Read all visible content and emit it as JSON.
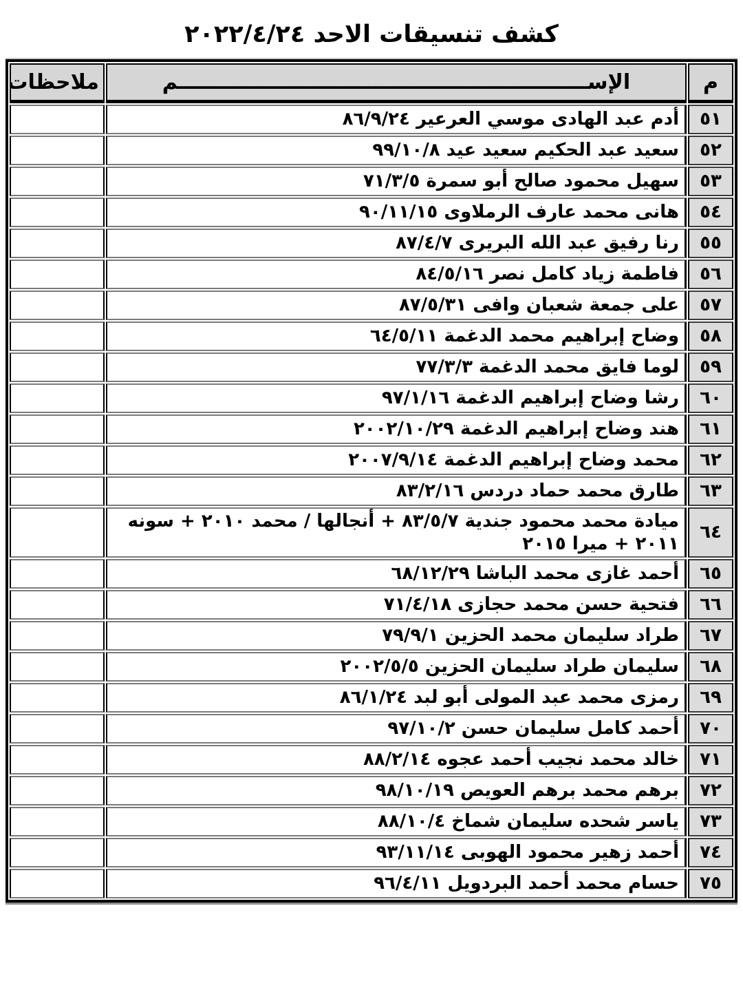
{
  "page": {
    "title": "كشف تنسيقات الاحد ٢٠٢٢/٤/٢٤"
  },
  "colors": {
    "header_bg": "#d6d6d6",
    "number_cell_bg": "#dcdcdc",
    "grid_gray": "#7a7a7a",
    "border_black": "#000000"
  },
  "table": {
    "headers": {
      "number": "م",
      "name": "الإســــــــــــــــــــــــــــــــــــــــــــــــــــــــــم",
      "notes": "ملاحظات"
    },
    "rows": [
      {
        "number": "٥١",
        "name": "أدم عبد الهادى موسي العرعير ٨٦/٩/٢٤",
        "notes": ""
      },
      {
        "number": "٥٢",
        "name": "سعيد عبد الحكيم سعيد عيد ٩٩/١٠/٨",
        "notes": ""
      },
      {
        "number": "٥٣",
        "name": "سهيل محمود صالح أبو سمرة ٧١/٣/٥",
        "notes": ""
      },
      {
        "number": "٥٤",
        "name": "هانى محمد عارف الرملاوى ٩٠/١١/١٥",
        "notes": ""
      },
      {
        "number": "٥٥",
        "name": "رنا رفيق عبد الله البريرى ٨٧/٤/٧",
        "notes": ""
      },
      {
        "number": "٥٦",
        "name": "فاطمة زياد كامل نصر ٨٤/٥/١٦",
        "notes": ""
      },
      {
        "number": "٥٧",
        "name": "على جمعة شعبان وافى ٨٧/٥/٣١",
        "notes": ""
      },
      {
        "number": "٥٨",
        "name": "وضاح إبراهيم محمد الدغمة ٦٤/٥/١١",
        "notes": ""
      },
      {
        "number": "٥٩",
        "name": "لوما فايق محمد الدغمة ٧٧/٣/٣",
        "notes": ""
      },
      {
        "number": "٦٠",
        "name": "رشا وضاح إبراهيم الدغمة ٩٧/١/١٦",
        "notes": ""
      },
      {
        "number": "٦١",
        "name": "هند وضاح إبراهيم الدغمة ٢٠٠٢/١٠/٢٩",
        "notes": ""
      },
      {
        "number": "٦٢",
        "name": "محمد وضاح إبراهيم الدغمة ٢٠٠٧/٩/١٤",
        "notes": ""
      },
      {
        "number": "٦٣",
        "name": "طارق محمد حماد دردس ٨٣/٢/١٦",
        "notes": ""
      },
      {
        "number": "٦٤",
        "name": "ميادة محمد محمود جندية ٨٣/٥/٧ + أنجالها / محمد ٢٠١٠ + سونه ٢٠١١ + ميرا ٢٠١٥",
        "notes": ""
      },
      {
        "number": "٦٥",
        "name": "أحمد غازى محمد الباشا ٦٨/١٢/٢٩",
        "notes": ""
      },
      {
        "number": "٦٦",
        "name": "فتحية حسن محمد حجازى ٧١/٤/١٨",
        "notes": ""
      },
      {
        "number": "٦٧",
        "name": "طراد سليمان محمد الحزين ٧٩/٩/١",
        "notes": ""
      },
      {
        "number": "٦٨",
        "name": "سليمان طراد سليمان الحزين ٢٠٠٢/٥/٥",
        "notes": ""
      },
      {
        "number": "٦٩",
        "name": "رمزى محمد عبد المولى أبو لبد ٨٦/١/٢٤",
        "notes": ""
      },
      {
        "number": "٧٠",
        "name": "أحمد كامل سليمان حسن ٩٧/١٠/٢",
        "notes": ""
      },
      {
        "number": "٧١",
        "name": "خالد محمد نجيب أحمد عجوه ٨٨/٢/١٤",
        "notes": ""
      },
      {
        "number": "٧٢",
        "name": "برهم محمد برهم العويص ٩٨/١٠/١٩",
        "notes": ""
      },
      {
        "number": "٧٣",
        "name": "ياسر شحده سليمان شماخ ٨٨/١٠/٤",
        "notes": ""
      },
      {
        "number": "٧٤",
        "name": "أحمد زهير محمود الهوبى ٩٣/١١/١٤",
        "notes": ""
      },
      {
        "number": "٧٥",
        "name": "حسام محمد أحمد البردويل ٩٦/٤/١١",
        "notes": ""
      }
    ]
  }
}
